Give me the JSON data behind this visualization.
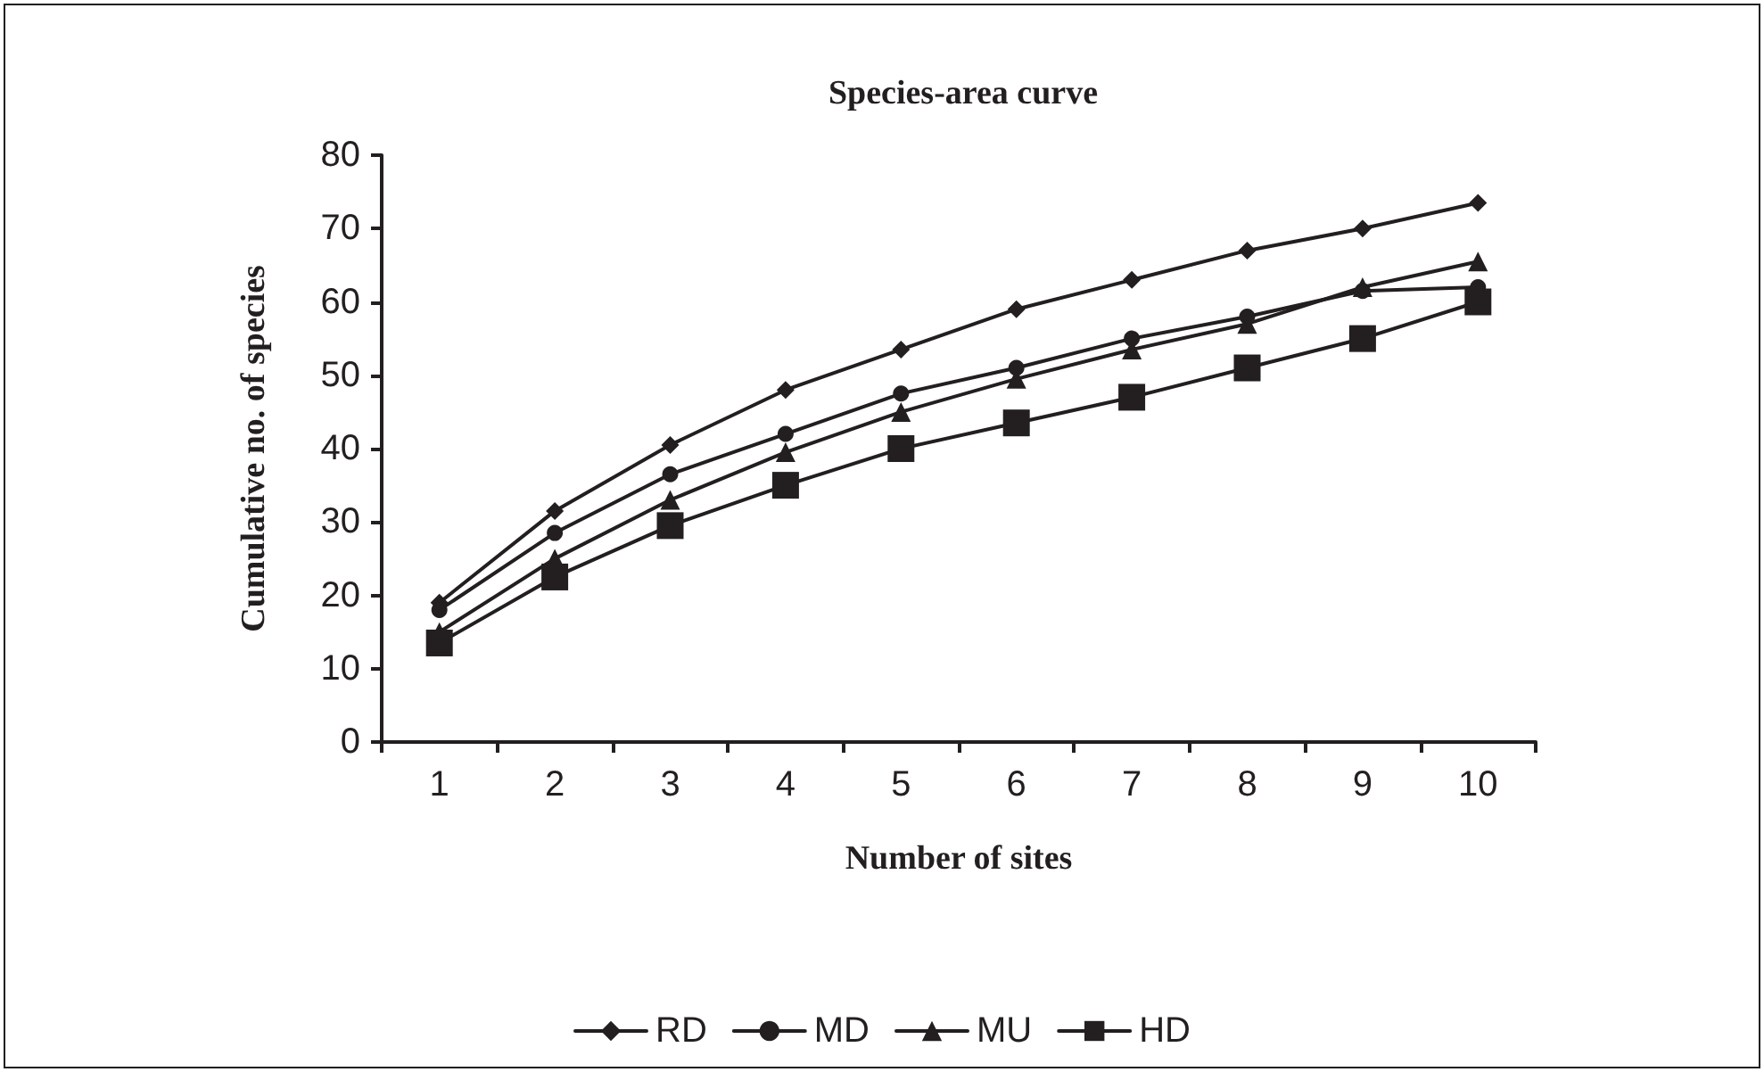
{
  "chart_data": {
    "type": "line",
    "title": "Species-area curve",
    "xlabel": "Number of sites",
    "ylabel": "Cumulative no. of species",
    "categories": [
      "1",
      "2",
      "3",
      "4",
      "5",
      "6",
      "7",
      "8",
      "9",
      "10"
    ],
    "series": [
      {
        "name": "RD",
        "color": "#231f20",
        "marker": "diamond",
        "values": [
          19,
          31.5,
          40.5,
          48,
          53.5,
          59,
          63,
          67,
          70,
          73.5
        ]
      },
      {
        "name": "MD",
        "color": "#231f20",
        "marker": "circle",
        "values": [
          18,
          28.5,
          36.5,
          42,
          47.5,
          51,
          55,
          58,
          61.5,
          62
        ]
      },
      {
        "name": "MU",
        "color": "#231f20",
        "marker": "triangle",
        "values": [
          15,
          25,
          33,
          39.5,
          45,
          49.5,
          53.5,
          57,
          62,
          65.5
        ]
      },
      {
        "name": "HD",
        "color": "#231f20",
        "marker": "square",
        "values": [
          13.5,
          22.5,
          29.5,
          35,
          40,
          43.5,
          47,
          51,
          55,
          60
        ]
      }
    ],
    "ylim": [
      0,
      80
    ],
    "yticks": [
      0,
      10,
      20,
      30,
      40,
      50,
      60,
      70,
      80
    ],
    "grid": false,
    "legend": "bottom",
    "line_style": "solid"
  }
}
